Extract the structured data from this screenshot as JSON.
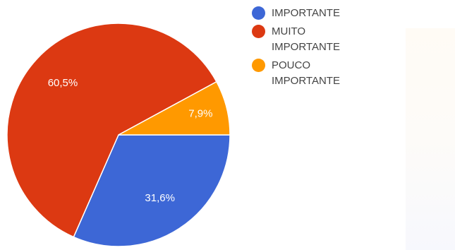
{
  "chart_data": {
    "type": "pie",
    "title": "",
    "series": [
      {
        "name": "IMPORTANTE",
        "value": 31.6,
        "label": "31,6%",
        "color": "#3d67d6"
      },
      {
        "name": "MUITO IMPORTANTE",
        "value": 60.5,
        "label": "60,5%",
        "color": "#dc3912"
      },
      {
        "name": "POUCO IMPORTANTE",
        "value": 7.9,
        "label": "7,9%",
        "color": "#ff9900"
      }
    ],
    "legend_position": "right",
    "start": "3 o'clock, clockwise"
  }
}
